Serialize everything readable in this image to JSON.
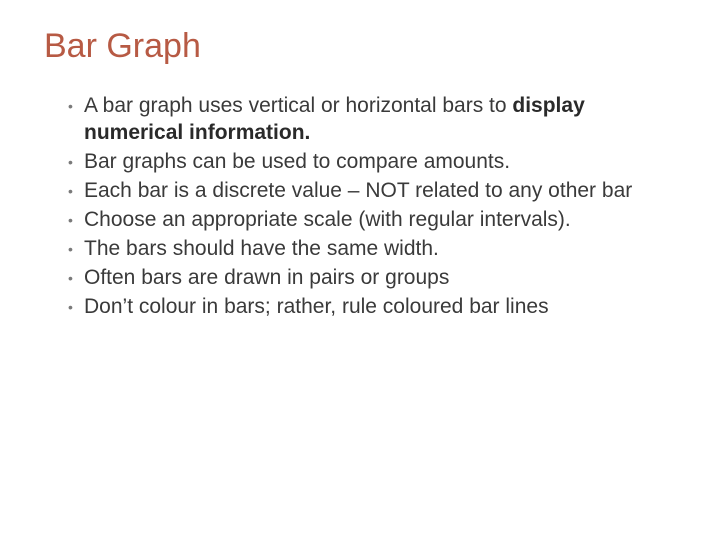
{
  "slide": {
    "title_text": "Bar Graph",
    "title_color": "#b75a44",
    "body_color": "#3a3a3a",
    "background_color": "#ffffff",
    "title_fontsize": 34,
    "body_fontsize": 21,
    "bullets": [
      {
        "html": "A bar graph uses vertical or horizontal bars to <b>display numerical information.</b>"
      },
      {
        "html": "Bar graphs can be used to compare amounts."
      },
      {
        "html": "Each bar is a discrete value – NOT related to any other bar"
      },
      {
        "html": "Choose an appropriate scale (with regular intervals)."
      },
      {
        "html": "The bars should have the same width."
      },
      {
        "html": "Often bars are drawn in pairs or groups"
      },
      {
        "html": "Don’t colour in bars; rather, rule coloured bar lines"
      }
    ]
  }
}
